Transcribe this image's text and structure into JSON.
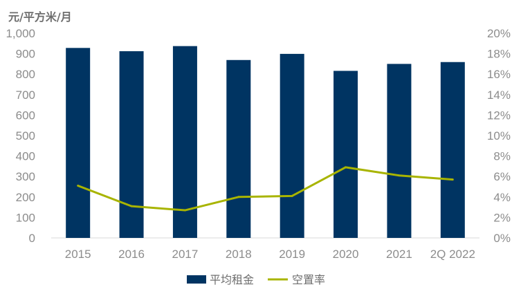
{
  "chart_data": {
    "type": "bar",
    "categories": [
      "2015",
      "2016",
      "2017",
      "2018",
      "2019",
      "2020",
      "2021",
      "2Q 2022"
    ],
    "series": [
      {
        "name": "平均租金",
        "kind": "bar",
        "axis": "left",
        "color": "#003462",
        "values": [
          928,
          912,
          937,
          869,
          899,
          816,
          850,
          859
        ]
      },
      {
        "name": "空置率",
        "kind": "line",
        "axis": "right",
        "color": "#a8b400",
        "values": [
          5.1,
          3.1,
          2.7,
          4.0,
          4.1,
          6.9,
          6.1,
          5.7
        ]
      }
    ],
    "left_axis": {
      "label": "元/平方米/月",
      "ylim": [
        0,
        1000
      ],
      "ticks": [
        "0",
        "100",
        "200",
        "300",
        "400",
        "500",
        "600",
        "700",
        "800",
        "900",
        "1,000"
      ]
    },
    "right_axis": {
      "ylim": [
        0,
        20
      ],
      "ticks": [
        "0%",
        "2%",
        "4%",
        "6%",
        "8%",
        "10%",
        "12%",
        "14%",
        "16%",
        "18%",
        "20%"
      ]
    },
    "legend": [
      "平均租金",
      "空置率"
    ],
    "legend_position": "bottom"
  }
}
